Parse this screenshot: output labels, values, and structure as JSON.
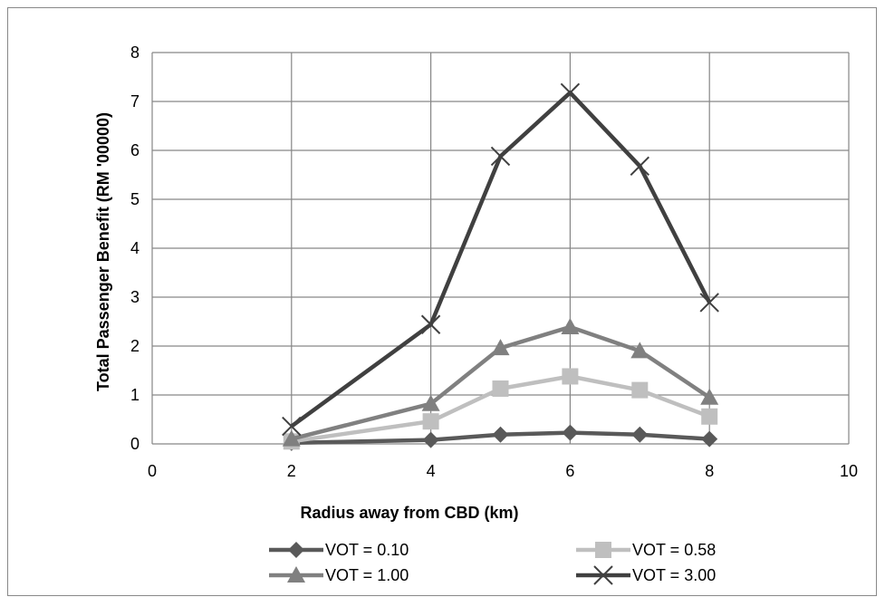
{
  "chart_data": {
    "type": "line",
    "title": "",
    "xlabel": "Radius away from CBD (km)",
    "ylabel": "Total Passenger Benefit (RM '00000)",
    "xlim": [
      0,
      10
    ],
    "ylim": [
      0,
      8
    ],
    "xticks": [
      "0",
      "2",
      "4",
      "6",
      "8",
      "10"
    ],
    "yticks": [
      "0",
      "1",
      "2",
      "3",
      "4",
      "5",
      "6",
      "7",
      "8"
    ],
    "grid": true,
    "legend_position": "bottom",
    "series": [
      {
        "name": "VOT = 0.10",
        "marker": "diamond",
        "color": "#595959",
        "x": [
          2,
          4,
          5,
          6,
          7,
          8
        ],
        "y": [
          0.02,
          0.08,
          0.19,
          0.23,
          0.19,
          0.1
        ]
      },
      {
        "name": "VOT = 0.58",
        "marker": "square",
        "color": "#bfbfbf",
        "x": [
          2,
          4,
          5,
          6,
          7,
          8
        ],
        "y": [
          0.05,
          0.46,
          1.13,
          1.38,
          1.1,
          0.56
        ]
      },
      {
        "name": "VOT = 1.00",
        "marker": "triangle",
        "color": "#808080",
        "x": [
          2,
          4,
          5,
          6,
          7,
          8
        ],
        "y": [
          0.1,
          0.82,
          1.96,
          2.39,
          1.9,
          0.95
        ]
      },
      {
        "name": "VOT = 3.00",
        "marker": "x",
        "color": "#404040",
        "x": [
          2,
          4,
          5,
          6,
          7,
          8
        ],
        "y": [
          0.36,
          2.44,
          5.88,
          7.18,
          5.68,
          2.89
        ]
      }
    ]
  }
}
